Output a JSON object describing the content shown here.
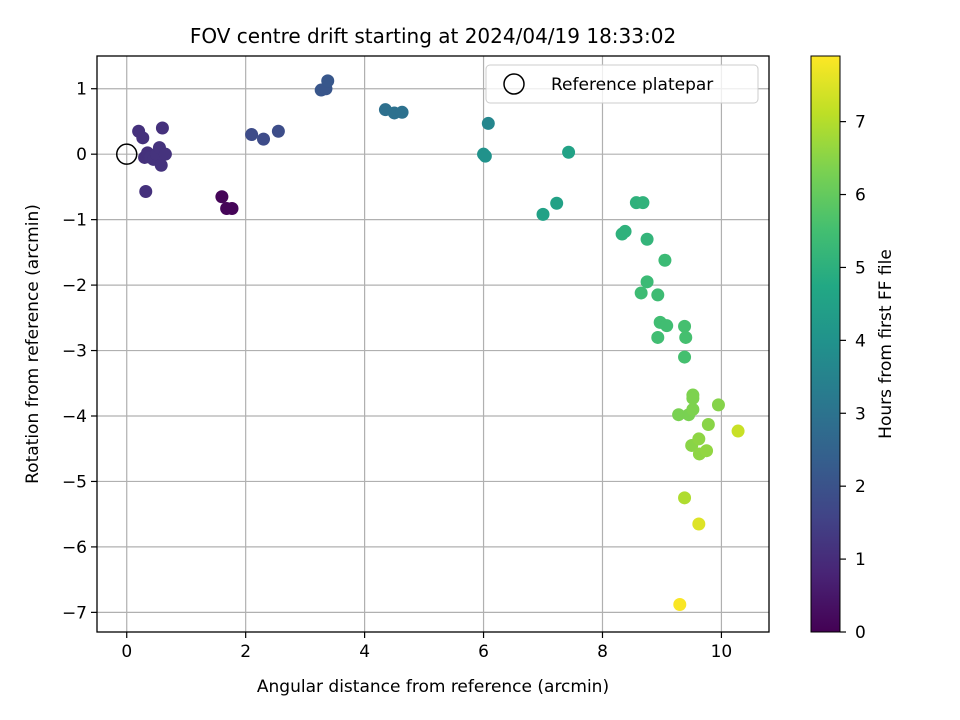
{
  "chart_data": {
    "type": "scatter",
    "title": "FOV centre drift starting at 2024/04/19 18:33:02",
    "xlabel": "Angular distance from reference (arcmin)",
    "ylabel": "Rotation from reference (arcmin)",
    "xlim": [
      -0.5,
      10.8
    ],
    "ylim": [
      -7.3,
      1.5
    ],
    "xticks": [
      0,
      2,
      4,
      6,
      8,
      10
    ],
    "yticks": [
      1,
      0,
      -1,
      -2,
      -3,
      -4,
      -5,
      -6,
      -7
    ],
    "grid": true,
    "legend": {
      "position": "top-right",
      "entries": [
        "Reference platepar"
      ]
    },
    "reference_point": {
      "x": 0,
      "y": 0
    },
    "colorbar": {
      "label": "Hours from first FF file",
      "min": 0,
      "max": 7.9,
      "ticks": [
        0,
        1,
        2,
        3,
        4,
        5,
        6,
        7
      ],
      "colormap": "viridis"
    },
    "series": [
      {
        "points": [
          {
            "x": 0.2,
            "y": 0.35,
            "hours": 1.1
          },
          {
            "x": 0.27,
            "y": 0.25,
            "hours": 1.1
          },
          {
            "x": 0.3,
            "y": -0.05,
            "hours": 1.1
          },
          {
            "x": 0.35,
            "y": 0.02,
            "hours": 1.1
          },
          {
            "x": 0.4,
            "y": -0.05,
            "hours": 1.15
          },
          {
            "x": 0.45,
            "y": -0.08,
            "hours": 1.15
          },
          {
            "x": 0.5,
            "y": 0.0,
            "hours": 1.15
          },
          {
            "x": 0.55,
            "y": 0.1,
            "hours": 1.15
          },
          {
            "x": 0.58,
            "y": -0.17,
            "hours": 1.15
          },
          {
            "x": 0.65,
            "y": 0.0,
            "hours": 1.15
          },
          {
            "x": 0.32,
            "y": -0.57,
            "hours": 1.1
          },
          {
            "x": 0.6,
            "y": 0.4,
            "hours": 1.1
          },
          {
            "x": 1.6,
            "y": -0.65,
            "hours": 0.1
          },
          {
            "x": 1.68,
            "y": -0.83,
            "hours": 0.1
          },
          {
            "x": 1.77,
            "y": -0.83,
            "hours": 0.1
          },
          {
            "x": 2.1,
            "y": 0.3,
            "hours": 1.8
          },
          {
            "x": 2.3,
            "y": 0.23,
            "hours": 1.8
          },
          {
            "x": 2.55,
            "y": 0.35,
            "hours": 1.85
          },
          {
            "x": 3.27,
            "y": 0.98,
            "hours": 2.1
          },
          {
            "x": 3.35,
            "y": 1.0,
            "hours": 2.1
          },
          {
            "x": 3.38,
            "y": 1.12,
            "hours": 2.15
          },
          {
            "x": 4.35,
            "y": 0.68,
            "hours": 2.9
          },
          {
            "x": 4.5,
            "y": 0.63,
            "hours": 2.95
          },
          {
            "x": 4.63,
            "y": 0.64,
            "hours": 2.95
          },
          {
            "x": 6.0,
            "y": 0.0,
            "hours": 4.0
          },
          {
            "x": 6.03,
            "y": -0.03,
            "hours": 4.0
          },
          {
            "x": 6.08,
            "y": 0.47,
            "hours": 3.6
          },
          {
            "x": 7.0,
            "y": -0.92,
            "hours": 4.5
          },
          {
            "x": 7.23,
            "y": -0.75,
            "hours": 4.5
          },
          {
            "x": 7.43,
            "y": 0.03,
            "hours": 4.55
          },
          {
            "x": 8.33,
            "y": -1.22,
            "hours": 5.05
          },
          {
            "x": 8.38,
            "y": -1.18,
            "hours": 5.05
          },
          {
            "x": 8.57,
            "y": -0.74,
            "hours": 5.05
          },
          {
            "x": 8.68,
            "y": -0.74,
            "hours": 5.1
          },
          {
            "x": 8.75,
            "y": -1.3,
            "hours": 5.15
          },
          {
            "x": 9.05,
            "y": -1.62,
            "hours": 5.35
          },
          {
            "x": 8.75,
            "y": -1.95,
            "hours": 5.35
          },
          {
            "x": 8.65,
            "y": -2.12,
            "hours": 5.4
          },
          {
            "x": 8.93,
            "y": -2.15,
            "hours": 5.4
          },
          {
            "x": 8.97,
            "y": -2.57,
            "hours": 5.45
          },
          {
            "x": 9.08,
            "y": -2.62,
            "hours": 5.45
          },
          {
            "x": 8.93,
            "y": -2.8,
            "hours": 5.45
          },
          {
            "x": 9.38,
            "y": -2.63,
            "hours": 5.55
          },
          {
            "x": 9.4,
            "y": -2.8,
            "hours": 5.55
          },
          {
            "x": 9.38,
            "y": -3.1,
            "hours": 5.55
          },
          {
            "x": 9.28,
            "y": -3.98,
            "hours": 6.3
          },
          {
            "x": 9.45,
            "y": -3.98,
            "hours": 6.3
          },
          {
            "x": 9.52,
            "y": -3.68,
            "hours": 6.35
          },
          {
            "x": 9.52,
            "y": -3.73,
            "hours": 6.35
          },
          {
            "x": 9.52,
            "y": -3.9,
            "hours": 6.35
          },
          {
            "x": 9.95,
            "y": -3.83,
            "hours": 6.45
          },
          {
            "x": 9.78,
            "y": -4.13,
            "hours": 6.5
          },
          {
            "x": 9.5,
            "y": -4.45,
            "hours": 6.5
          },
          {
            "x": 9.62,
            "y": -4.35,
            "hours": 6.55
          },
          {
            "x": 9.63,
            "y": -4.58,
            "hours": 6.55
          },
          {
            "x": 9.75,
            "y": -4.53,
            "hours": 6.6
          },
          {
            "x": 10.28,
            "y": -4.23,
            "hours": 7.25
          },
          {
            "x": 9.38,
            "y": -5.25,
            "hours": 6.95
          },
          {
            "x": 9.62,
            "y": -5.65,
            "hours": 7.5
          },
          {
            "x": 9.3,
            "y": -6.88,
            "hours": 7.85
          }
        ]
      }
    ]
  }
}
